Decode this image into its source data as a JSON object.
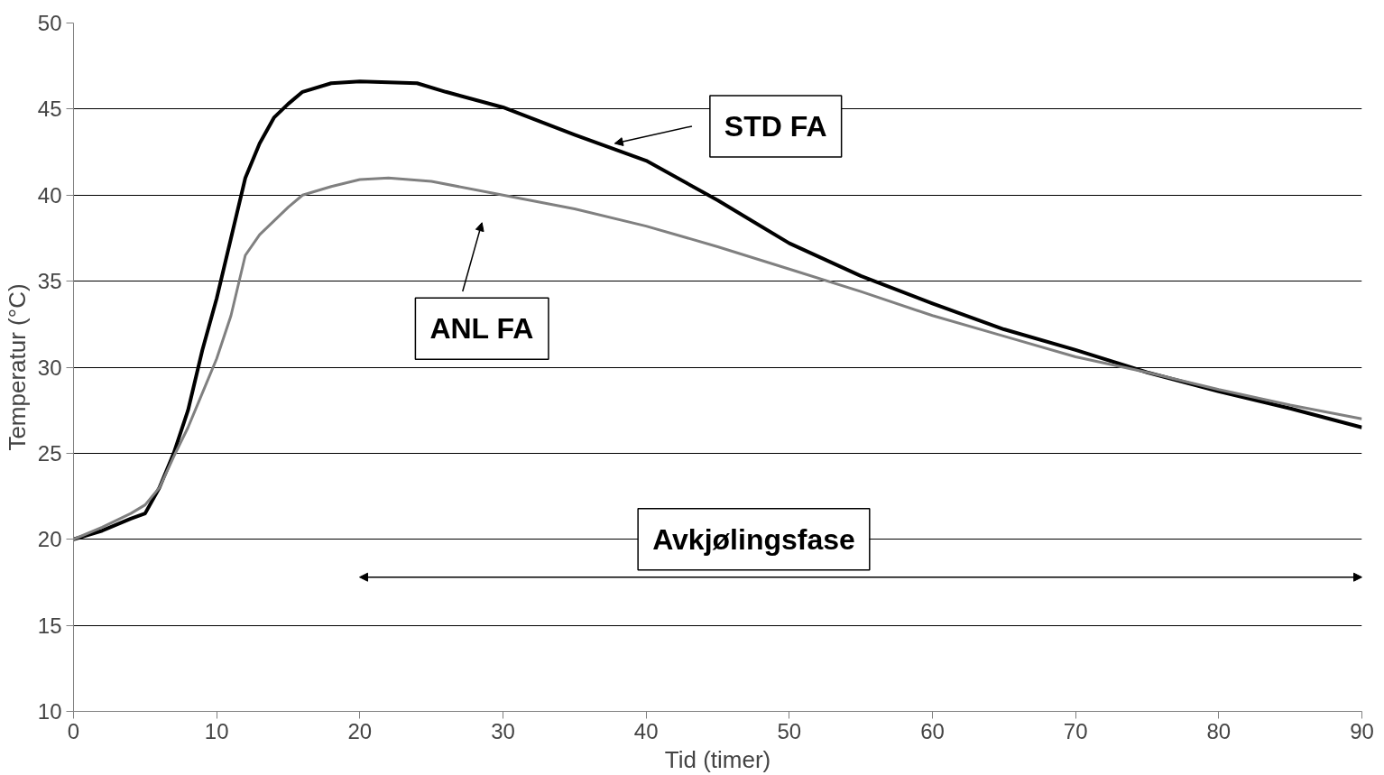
{
  "chart_data": {
    "type": "line",
    "xlabel": "Tid (timer)",
    "ylabel": "Temperatur (°C)",
    "xlim": [
      0,
      90
    ],
    "ylim": [
      10,
      50
    ],
    "xticks": [
      0,
      10,
      20,
      30,
      40,
      50,
      60,
      70,
      80,
      90
    ],
    "yticks": [
      10,
      15,
      20,
      25,
      30,
      35,
      40,
      45,
      50
    ],
    "grid": "y",
    "marker": "none",
    "line_style": "solid",
    "series": [
      {
        "color": "#000000",
        "x": [
          0,
          2,
          4,
          5,
          6,
          7,
          8,
          9,
          10,
          11,
          12,
          13,
          14,
          15,
          16,
          18,
          20,
          24,
          26,
          30,
          35,
          40,
          45,
          50,
          55,
          60,
          65,
          70,
          75,
          80,
          85,
          90
        ],
        "values": [
          20,
          20.5,
          21.2,
          21.5,
          23,
          25,
          27.5,
          31,
          34,
          37.5,
          41,
          43,
          44.5,
          45.3,
          46,
          46.5,
          46.6,
          46.5,
          46,
          45.1,
          43.5,
          42,
          39.7,
          37.2,
          35.3,
          33.7,
          32.2,
          31,
          29.7,
          28.6,
          27.6,
          26.5
        ]
      },
      {
        "color": "#808080",
        "x": [
          0,
          2,
          4,
          5,
          6,
          7,
          8,
          9,
          10,
          11,
          12,
          13,
          14,
          15,
          16,
          18,
          20,
          22,
          25,
          30,
          35,
          40,
          45,
          50,
          55,
          60,
          65,
          70,
          75,
          80,
          85,
          90
        ],
        "values": [
          20,
          20.7,
          21.5,
          22,
          23,
          24.8,
          26.5,
          28.5,
          30.5,
          33,
          36.5,
          37.7,
          38.5,
          39.3,
          40,
          40.5,
          40.9,
          41,
          40.8,
          40,
          39.2,
          38.2,
          37,
          35.7,
          34.4,
          33,
          31.8,
          30.6,
          29.7,
          28.7,
          27.8,
          27
        ]
      }
    ],
    "annotations": [
      "STD FA",
      "ANL FA",
      "Avkjølingsfase"
    ]
  }
}
